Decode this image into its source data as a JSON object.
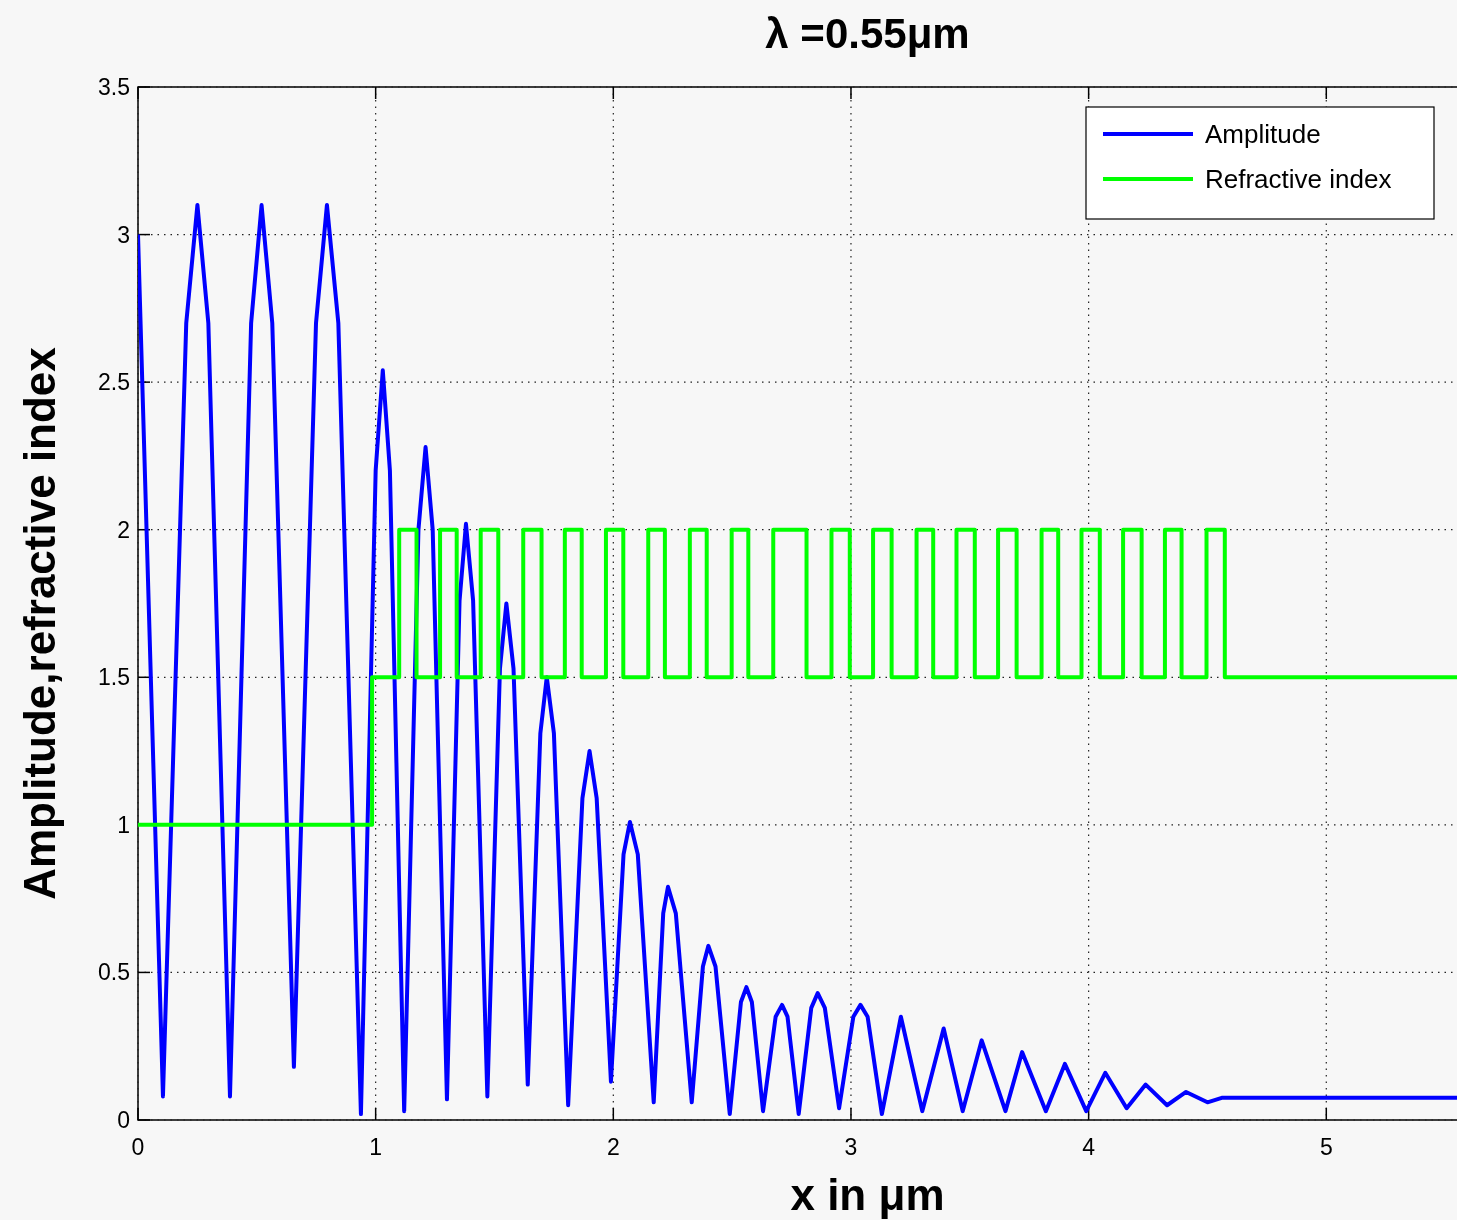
{
  "chart_data": {
    "type": "line",
    "title": "λ =0.55μm",
    "xlabel": "x in μm",
    "ylabel": "Amplitude,refractive index",
    "xlim": [
      0,
      5.55
    ],
    "ylim": [
      0,
      3.5
    ],
    "xticks": [
      0,
      1,
      2,
      3,
      4,
      5
    ],
    "yticks": [
      0,
      0.5,
      1,
      1.5,
      2,
      2.5,
      3,
      3.5
    ],
    "grid": true,
    "legend": "top right",
    "series": [
      {
        "name": "Amplitude",
        "color": "#0000ff",
        "x": [
          0,
          0.105,
          0.203,
          0.25,
          0.296,
          0.387,
          0.476,
          0.52,
          0.565,
          0.656,
          0.749,
          0.795,
          0.843,
          0.938,
          1.0,
          1.03,
          1.06,
          1.12,
          1.18,
          1.21,
          1.24,
          1.3,
          1.353,
          1.38,
          1.41,
          1.47,
          1.523,
          1.55,
          1.58,
          1.64,
          1.693,
          1.72,
          1.75,
          1.81,
          1.87,
          1.9,
          1.93,
          1.99,
          2.043,
          2.07,
          2.103,
          2.17,
          2.21,
          2.23,
          2.263,
          2.33,
          2.377,
          2.4,
          2.43,
          2.49,
          2.537,
          2.56,
          2.583,
          2.63,
          2.683,
          2.71,
          2.733,
          2.78,
          2.833,
          2.86,
          2.89,
          2.95,
          3.01,
          3.04,
          3.07,
          3.13,
          3.21,
          3.3,
          3.39,
          3.47,
          3.55,
          3.65,
          3.72,
          3.82,
          3.9,
          3.99,
          4.07,
          4.16,
          4.24,
          4.33,
          4.41,
          4.5,
          4.56,
          5.55
        ],
        "values": [
          3.0,
          0.08,
          2.7,
          3.1,
          2.7,
          0.08,
          2.7,
          3.1,
          2.7,
          0.18,
          2.7,
          3.1,
          2.7,
          0.02,
          2.2,
          2.54,
          2.2,
          0.03,
          2.0,
          2.28,
          2.0,
          0.07,
          1.76,
          2.02,
          1.76,
          0.08,
          1.53,
          1.75,
          1.53,
          0.12,
          1.31,
          1.5,
          1.31,
          0.05,
          1.09,
          1.25,
          1.09,
          0.13,
          0.9,
          1.01,
          0.9,
          0.06,
          0.7,
          0.79,
          0.7,
          0.06,
          0.52,
          0.59,
          0.52,
          0.02,
          0.4,
          0.45,
          0.4,
          0.03,
          0.35,
          0.39,
          0.35,
          0.02,
          0.38,
          0.43,
          0.38,
          0.04,
          0.35,
          0.39,
          0.35,
          0.02,
          0.35,
          0.03,
          0.31,
          0.03,
          0.27,
          0.03,
          0.23,
          0.03,
          0.19,
          0.03,
          0.16,
          0.04,
          0.12,
          0.05,
          0.095,
          0.06,
          0.075,
          0.075
        ]
      },
      {
        "name": "Refractive index",
        "color": "#00ff00",
        "type": "step",
        "x": [
          0,
          0.985,
          1.099,
          1.172,
          1.271,
          1.341,
          1.442,
          1.516,
          1.621,
          1.698,
          1.796,
          1.867,
          1.969,
          2.042,
          2.147,
          2.217,
          2.322,
          2.393,
          2.498,
          2.568,
          2.673,
          2.813,
          2.918,
          2.995,
          3.093,
          3.171,
          3.276,
          3.346,
          3.444,
          3.521,
          3.619,
          3.697,
          3.802,
          3.872,
          3.97,
          4.047,
          4.145,
          4.223,
          4.321,
          4.391,
          4.496,
          4.573,
          5.55
        ],
        "values": [
          1,
          1.5,
          2,
          1.5,
          2,
          1.5,
          2,
          1.5,
          2,
          1.5,
          2,
          1.5,
          2,
          1.5,
          2,
          1.5,
          2,
          1.5,
          2,
          1.5,
          2,
          1.5,
          2,
          1.5,
          2,
          1.5,
          2,
          1.5,
          2,
          1.5,
          2,
          1.5,
          2,
          1.5,
          2,
          1.5,
          2,
          1.5,
          2,
          1.5,
          2,
          1.5,
          1.5
        ]
      }
    ]
  }
}
